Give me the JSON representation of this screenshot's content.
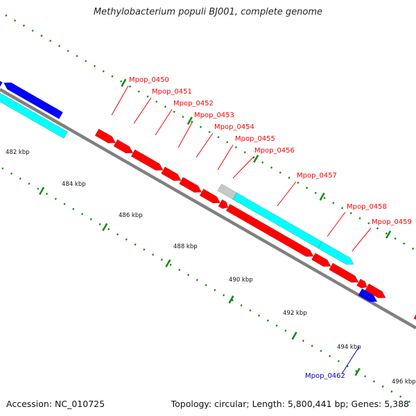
{
  "title": "Methylobacterium populi BJ001, complete genome",
  "footer": {
    "accession": "Accession: NC_010725",
    "stats": "Topology: circular; Length: 5,800,441 bp; Genes: 5,388"
  },
  "colors": {
    "backbone": "#808080",
    "ticks": "#1a8a1a",
    "forward_gene": "#ff0000",
    "forward_gene_alt": "#00ffff",
    "reverse_gene": "#0000ff",
    "misc_gene": "#c8c8c8",
    "label_forward": "#ff0000",
    "label_reverse": "#0000cc"
  },
  "tick_labels": [
    "482 kbp",
    "484 kbp",
    "486 kbp",
    "488 kbp",
    "490 kbp",
    "492 kbp",
    "494 kbp",
    "496 kbp"
  ],
  "gene_labels": [
    {
      "text": "Mpop_0450",
      "strand": "forward"
    },
    {
      "text": "Mpop_0451",
      "strand": "forward"
    },
    {
      "text": "Mpop_0452",
      "strand": "forward"
    },
    {
      "text": "Mpop_0453",
      "strand": "forward"
    },
    {
      "text": "Mpop_0454",
      "strand": "forward"
    },
    {
      "text": "Mpop_0455",
      "strand": "forward"
    },
    {
      "text": "Mpop_0456",
      "strand": "forward"
    },
    {
      "text": "Mpop_0457",
      "strand": "forward"
    },
    {
      "text": "Mpop_0458",
      "strand": "forward"
    },
    {
      "text": "Mpop_0459",
      "strand": "forward"
    },
    {
      "text": "Mpop_0462",
      "strand": "reverse"
    }
  ]
}
